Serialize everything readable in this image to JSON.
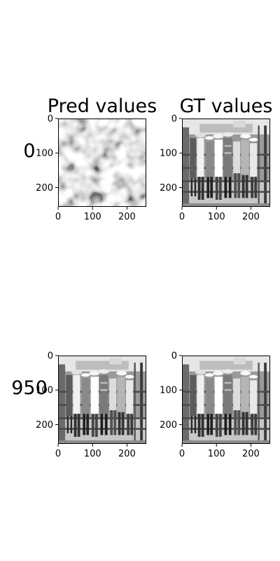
{
  "chart_data": {
    "type": "image-grid",
    "column_titles": [
      "Pred values",
      "GT values"
    ],
    "row_labels": [
      "0",
      "950"
    ],
    "panels": [
      {
        "row": "0",
        "column": "Pred values",
        "content": "noise"
      },
      {
        "row": "0",
        "column": "GT values",
        "content": "photo"
      },
      {
        "row": "950",
        "column": "Pred values",
        "content": "photo"
      },
      {
        "row": "950",
        "column": "GT values",
        "content": "photo"
      }
    ],
    "axes": {
      "xlim": [
        0,
        256
      ],
      "ylim": [
        0,
        256
      ],
      "x_ticks": [
        0,
        100,
        200
      ],
      "y_ticks": [
        0,
        100,
        200
      ],
      "y_inverted": true
    },
    "colormap": "gray"
  }
}
